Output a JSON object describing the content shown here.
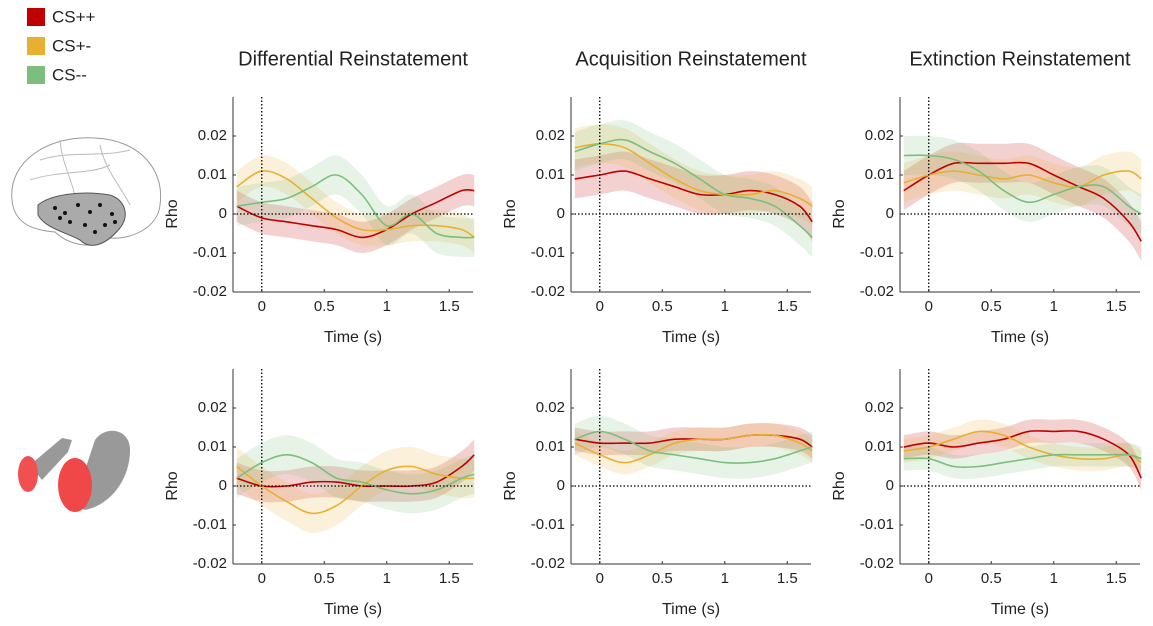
{
  "legend": [
    {
      "name": "CS++",
      "color": "#c00000"
    },
    {
      "name": "CS+-",
      "color": "#e8b030"
    },
    {
      "name": "CS--",
      "color": "#7cbf7c"
    }
  ],
  "chart_data": [
    {
      "type": "line",
      "title": "Differential Reinstatement",
      "xlabel": "Time (s)",
      "ylabel": "Rho",
      "x": [
        -0.2,
        0,
        0.2,
        0.4,
        0.6,
        0.8,
        1.0,
        1.2,
        1.4,
        1.6,
        1.7
      ],
      "xlim": [
        -0.23,
        1.69
      ],
      "ylim": [
        -0.02,
        0.03
      ],
      "xticks": [
        0,
        0.5,
        1,
        1.5
      ],
      "yticks": [
        -0.02,
        -0.01,
        0,
        0.01,
        0.02
      ],
      "vline": 0,
      "hline": 0,
      "series": [
        {
          "values": [
            0.002,
            -0.001,
            -0.002,
            -0.003,
            -0.004,
            -0.006,
            -0.004,
            0,
            0.003,
            0.006,
            0.006
          ],
          "error": 0.004
        },
        {
          "values": [
            0.007,
            0.011,
            0.009,
            0.004,
            -0.001,
            -0.004,
            -0.004,
            -0.003,
            -0.003,
            -0.004,
            -0.006
          ],
          "error": 0.004
        },
        {
          "values": [
            0.002,
            0.003,
            0.004,
            0.007,
            0.01,
            0.005,
            -0.003,
            0,
            -0.005,
            -0.006,
            -0.006
          ],
          "error": 0.005
        }
      ]
    },
    {
      "type": "line",
      "title": "Acquisition Reinstatement",
      "xlabel": "Time (s)",
      "ylabel": "Rho",
      "x": [
        -0.2,
        0,
        0.2,
        0.4,
        0.6,
        0.8,
        1.0,
        1.2,
        1.4,
        1.6,
        1.7
      ],
      "xlim": [
        -0.23,
        1.69
      ],
      "ylim": [
        -0.02,
        0.03
      ],
      "xticks": [
        0,
        0.5,
        1,
        1.5
      ],
      "yticks": [
        -0.02,
        -0.01,
        0,
        0.01,
        0.02
      ],
      "vline": 0,
      "hline": 0,
      "series": [
        {
          "values": [
            0.009,
            0.01,
            0.011,
            0.009,
            0.007,
            0.005,
            0.005,
            0.006,
            0.005,
            0.002,
            -0.002
          ],
          "error": 0.005
        },
        {
          "values": [
            0.017,
            0.018,
            0.017,
            0.013,
            0.009,
            0.006,
            0.005,
            0.005,
            0.006,
            0.004,
            0.002
          ],
          "error": 0.005
        },
        {
          "values": [
            0.016,
            0.018,
            0.019,
            0.016,
            0.013,
            0.009,
            0.005,
            0.004,
            0.002,
            -0.003,
            -0.006
          ],
          "error": 0.005
        }
      ]
    },
    {
      "type": "line",
      "title": "Extinction Reinstatement",
      "xlabel": "Time (s)",
      "ylabel": "Rho",
      "x": [
        -0.2,
        0,
        0.2,
        0.4,
        0.6,
        0.8,
        1.0,
        1.2,
        1.4,
        1.6,
        1.7
      ],
      "xlim": [
        -0.23,
        1.69
      ],
      "ylim": [
        -0.02,
        0.03
      ],
      "xticks": [
        0,
        0.5,
        1,
        1.5
      ],
      "yticks": [
        -0.02,
        -0.01,
        0,
        0.01,
        0.02
      ],
      "vline": 0,
      "hline": 0,
      "series": [
        {
          "values": [
            0.006,
            0.01,
            0.013,
            0.013,
            0.013,
            0.013,
            0.01,
            0.007,
            0.004,
            -0.002,
            -0.007
          ],
          "error": 0.005
        },
        {
          "values": [
            0.008,
            0.01,
            0.011,
            0.01,
            0.009,
            0.01,
            0.008,
            0.007,
            0.01,
            0.011,
            0.009
          ],
          "error": 0.005
        },
        {
          "values": [
            0.015,
            0.015,
            0.014,
            0.011,
            0.006,
            0.003,
            0.005,
            0.007,
            0.007,
            0.002,
            0.0
          ],
          "error": 0.005
        }
      ]
    },
    {
      "type": "line",
      "xlabel": "Time (s)",
      "ylabel": "Rho",
      "x": [
        -0.2,
        0,
        0.2,
        0.4,
        0.6,
        0.8,
        1.0,
        1.2,
        1.4,
        1.6,
        1.7
      ],
      "xlim": [
        -0.23,
        1.69
      ],
      "ylim": [
        -0.02,
        0.03
      ],
      "xticks": [
        0,
        0.5,
        1,
        1.5
      ],
      "yticks": [
        -0.02,
        -0.01,
        0,
        0.01,
        0.02
      ],
      "vline": 0,
      "hline": 0,
      "series": [
        {
          "values": [
            0.002,
            0,
            0,
            0.001,
            0.001,
            0,
            0,
            0,
            0.001,
            0.005,
            0.008
          ],
          "error": 0.004
        },
        {
          "values": [
            0.005,
            0,
            -0.004,
            -0.007,
            -0.005,
            0,
            0.004,
            0.005,
            0.003,
            0.002,
            0.002
          ],
          "error": 0.005
        },
        {
          "values": [
            0.002,
            0.006,
            0.008,
            0.006,
            0.002,
            0.001,
            -0.001,
            -0.002,
            -0.001,
            0.002,
            0.003
          ],
          "error": 0.005
        }
      ]
    },
    {
      "type": "line",
      "xlabel": "Time (s)",
      "ylabel": "Rho",
      "x": [
        -0.2,
        0,
        0.2,
        0.4,
        0.6,
        0.8,
        1.0,
        1.2,
        1.4,
        1.6,
        1.7
      ],
      "xlim": [
        -0.23,
        1.69
      ],
      "ylim": [
        -0.02,
        0.03
      ],
      "xticks": [
        0,
        0.5,
        1,
        1.5
      ],
      "yticks": [
        -0.02,
        -0.01,
        0,
        0.01,
        0.02
      ],
      "vline": 0,
      "hline": 0,
      "series": [
        {
          "values": [
            0.012,
            0.011,
            0.011,
            0.011,
            0.012,
            0.012,
            0.012,
            0.013,
            0.013,
            0.012,
            0.01
          ],
          "error": 0.003
        },
        {
          "values": [
            0.011,
            0.008,
            0.006,
            0.008,
            0.011,
            0.012,
            0.012,
            0.013,
            0.013,
            0.011,
            0.009
          ],
          "error": 0.003
        },
        {
          "values": [
            0.012,
            0.014,
            0.012,
            0.009,
            0.008,
            0.007,
            0.006,
            0.006,
            0.007,
            0.009,
            0.01
          ],
          "error": 0.004
        }
      ]
    },
    {
      "type": "line",
      "xlabel": "Time (s)",
      "ylabel": "Rho",
      "x": [
        -0.2,
        0,
        0.2,
        0.4,
        0.6,
        0.8,
        1.0,
        1.2,
        1.4,
        1.6,
        1.7
      ],
      "xlim": [
        -0.23,
        1.69
      ],
      "ylim": [
        -0.02,
        0.03
      ],
      "xticks": [
        0,
        0.5,
        1,
        1.5
      ],
      "yticks": [
        -0.02,
        -0.01,
        0,
        0.01,
        0.02
      ],
      "vline": 0,
      "hline": 0,
      "series": [
        {
          "values": [
            0.01,
            0.011,
            0.01,
            0.011,
            0.012,
            0.014,
            0.014,
            0.014,
            0.012,
            0.008,
            0.002
          ],
          "error": 0.003
        },
        {
          "values": [
            0.009,
            0.01,
            0.012,
            0.014,
            0.013,
            0.01,
            0.008,
            0.007,
            0.007,
            0.008,
            0.006
          ],
          "error": 0.003
        },
        {
          "values": [
            0.007,
            0.007,
            0.005,
            0.005,
            0.006,
            0.007,
            0.008,
            0.008,
            0.008,
            0.008,
            0.007
          ],
          "error": 0.003
        }
      ]
    }
  ]
}
